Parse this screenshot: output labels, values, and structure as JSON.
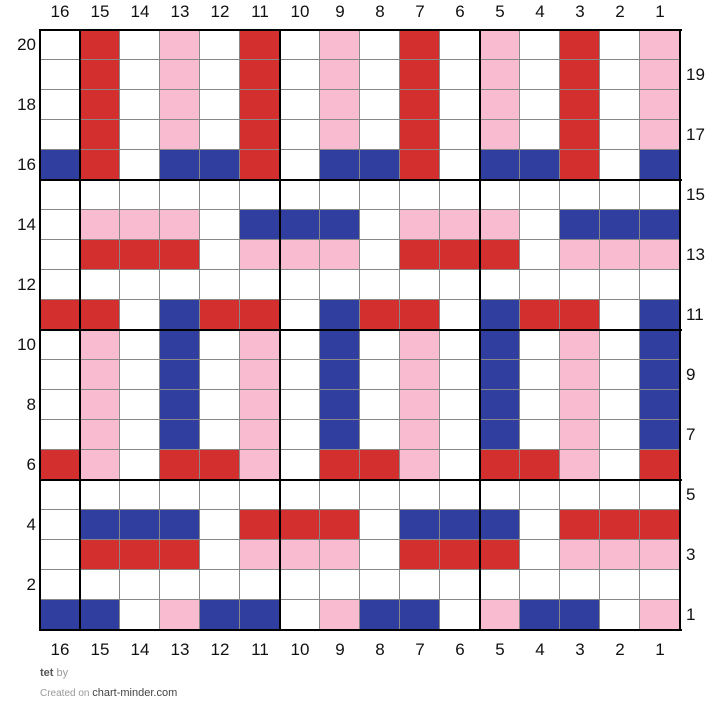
{
  "chart": {
    "columns": [
      16,
      15,
      14,
      13,
      12,
      11,
      10,
      9,
      8,
      7,
      6,
      5,
      4,
      3,
      2,
      1
    ],
    "rows_top_to_bottom": [
      20,
      19,
      18,
      17,
      16,
      15,
      14,
      13,
      12,
      11,
      10,
      9,
      8,
      7,
      6,
      5,
      4,
      3,
      2,
      1
    ],
    "palette": {
      "W": "#ffffff",
      "R": "#d32f2f",
      "P": "#f8bbd0",
      "B": "#303f9f"
    },
    "cells": [
      "WRWPWRWPWRWPWRWP",
      "WRWPWRWPWRWPWRWP",
      "WRWPWRWPWRWPWRWP",
      "WRWPWRWPWRWPWRWP",
      "BRWBBRWBBRWBBRWB",
      "WWWWWWWWWWWWWWWW",
      "WPPPWBBBWPPPWBBB",
      "WRRRWPPPWRRRWPPP",
      "WWWWWWWWWWWWWWWW",
      "RRWBRRWBRRWBRRWB",
      "WPWBWPWBWPWBWPWB",
      "WPWBWPWBWPWBWPWB",
      "WPWBWPWBWPWBWPWB",
      "WPWBWPWBWPWBWPWB",
      "RPWRRPWRRPWRRPWR",
      "WWWWWWWWWWWWWWWW",
      "WBBBWRRRWBBBWRRR",
      "WRRRWPPPWRRRWPPP",
      "WWWWWWWWWWWWWWWW",
      "BBWPBBWPBBWPBBWP"
    ]
  },
  "footer": {
    "title": "tet",
    "by": "by",
    "created_on": "Created on",
    "site": "chart-minder.com"
  }
}
